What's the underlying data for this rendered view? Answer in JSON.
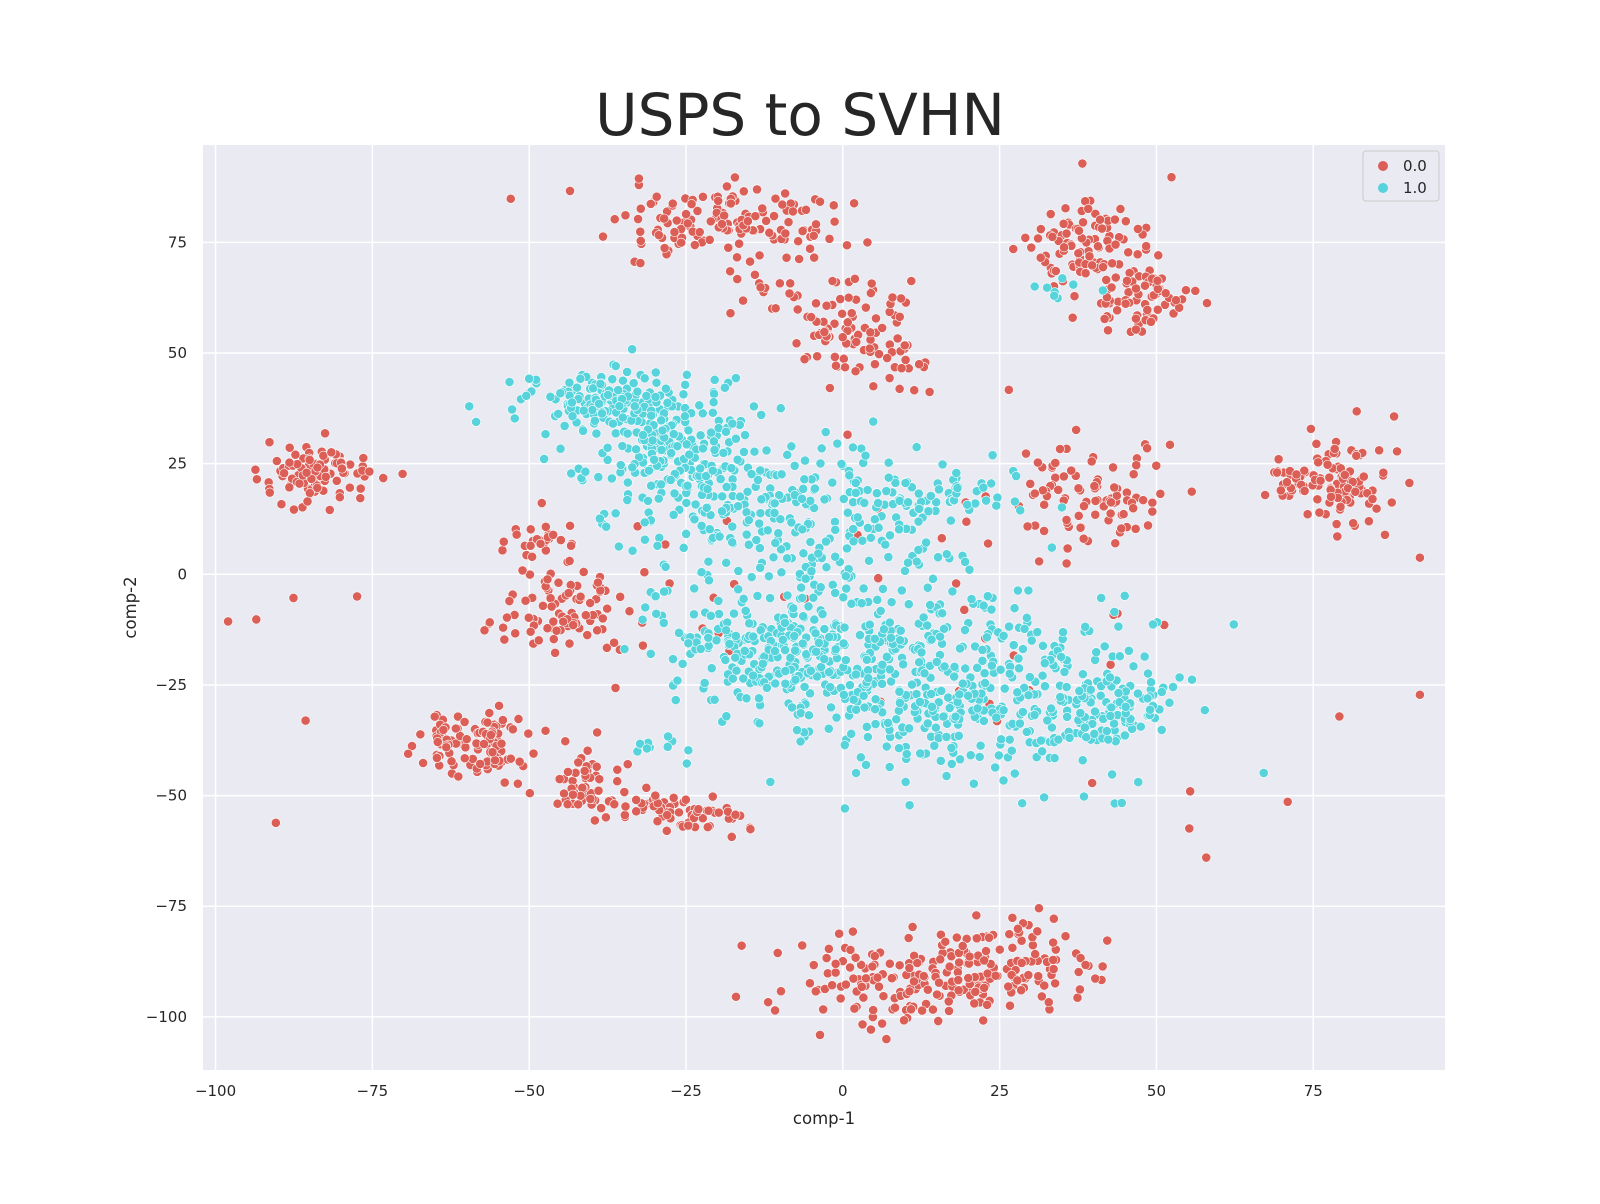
{
  "chart_data": {
    "type": "scatter",
    "title": "USPS to SVHN",
    "xlabel": "comp-1",
    "ylabel": "comp-2",
    "xlim": [
      -102,
      96
    ],
    "ylim": [
      -112,
      97
    ],
    "xticks": [
      -100,
      -75,
      -50,
      -25,
      0,
      25,
      50,
      75
    ],
    "yticks": [
      -100,
      -75,
      -50,
      -25,
      0,
      25,
      50,
      75
    ],
    "xtick_labels": [
      "−100",
      "−75",
      "−50",
      "−25",
      "0",
      "25",
      "50",
      "75"
    ],
    "ytick_labels": [
      "−100",
      "−75",
      "−50",
      "−25",
      "0",
      "25",
      "50",
      "75"
    ],
    "grid": true,
    "legend": {
      "placement": "top-right",
      "entries": [
        "0.0",
        "1.0"
      ]
    },
    "background_color": "#eaeaf2",
    "series": [
      {
        "name": "0.0",
        "color": "#db5f57",
        "clusters": [
          {
            "center": [
              -85,
              22
            ],
            "spread": [
              4,
              4
            ],
            "count": 90
          },
          {
            "center": [
              -78,
              23
            ],
            "spread": [
              3,
              2
            ],
            "count": 14
          },
          {
            "center": [
              -17,
              79
            ],
            "spread": [
              9,
              4
            ],
            "count": 140
          },
          {
            "center": [
              -12,
              65
            ],
            "spread": [
              3,
              2
            ],
            "count": 12
          },
          {
            "center": [
              0,
              56
            ],
            "spread": [
              5,
              5
            ],
            "count": 90
          },
          {
            "center": [
              10,
              48
            ],
            "spread": [
              2,
              3
            ],
            "count": 12
          },
          {
            "center": [
              40,
              73
            ],
            "spread": [
              5,
              6
            ],
            "count": 110
          },
          {
            "center": [
              46,
              60
            ],
            "spread": [
              4,
              3
            ],
            "count": 40
          },
          {
            "center": [
              50,
              65
            ],
            "spread": [
              3,
              2
            ],
            "count": 20
          },
          {
            "center": [
              79,
              21
            ],
            "spread": [
              4,
              5
            ],
            "count": 100
          },
          {
            "center": [
              71,
              22
            ],
            "spread": [
              2,
              3
            ],
            "count": 20
          },
          {
            "center": [
              37,
              17
            ],
            "spread": [
              6,
              5
            ],
            "count": 80
          },
          {
            "center": [
              46,
              16
            ],
            "spread": [
              2,
              2
            ],
            "count": 10
          },
          {
            "center": [
              -48,
              7
            ],
            "spread": [
              3,
              2
            ],
            "count": 25
          },
          {
            "center": [
              -44,
              -8
            ],
            "spread": [
              5,
              5
            ],
            "count": 90
          },
          {
            "center": [
              -58,
              -38
            ],
            "spread": [
              4,
              4
            ],
            "count": 110
          },
          {
            "center": [
              -40,
              -47
            ],
            "spread": [
              3,
              4
            ],
            "count": 50
          },
          {
            "center": [
              -30,
              -52
            ],
            "spread": [
              3,
              2
            ],
            "count": 40
          },
          {
            "center": [
              -22,
              -55
            ],
            "spread": [
              3,
              2
            ],
            "count": 35
          },
          {
            "center": [
              10,
              -92
            ],
            "spread": [
              11,
              5
            ],
            "count": 160
          },
          {
            "center": [
              27,
              -86
            ],
            "spread": [
              7,
              5
            ],
            "count": 90
          },
          {
            "center": [
              0,
              0
            ],
            "spread": [
              45,
              30
            ],
            "count": 70
          }
        ]
      },
      {
        "name": "1.0",
        "color": "#57d3db",
        "clusters": [
          {
            "center": [
              -38,
              39
            ],
            "spread": [
              7,
              4
            ],
            "count": 150
          },
          {
            "center": [
              -28,
              28
            ],
            "spread": [
              7,
              8
            ],
            "count": 200
          },
          {
            "center": [
              -15,
              18
            ],
            "spread": [
              8,
              9
            ],
            "count": 150
          },
          {
            "center": [
              -5,
              5
            ],
            "spread": [
              12,
              10
            ],
            "count": 110
          },
          {
            "center": [
              7,
              15
            ],
            "spread": [
              6,
              6
            ],
            "count": 70
          },
          {
            "center": [
              -12,
              -18
            ],
            "spread": [
              9,
              6
            ],
            "count": 190
          },
          {
            "center": [
              8,
              -22
            ],
            "spread": [
              12,
              10
            ],
            "count": 320
          },
          {
            "center": [
              30,
              -28
            ],
            "spread": [
              11,
              9
            ],
            "count": 240
          },
          {
            "center": [
              45,
              -30
            ],
            "spread": [
              4,
              4
            ],
            "count": 60
          },
          {
            "center": [
              33,
              65
            ],
            "spread": [
              3,
              2
            ],
            "count": 8
          },
          {
            "center": [
              -30,
              -39
            ],
            "spread": [
              2,
              2
            ],
            "count": 10
          },
          {
            "center": [
              20,
              18
            ],
            "spread": [
              4,
              4
            ],
            "count": 30
          }
        ]
      }
    ]
  }
}
